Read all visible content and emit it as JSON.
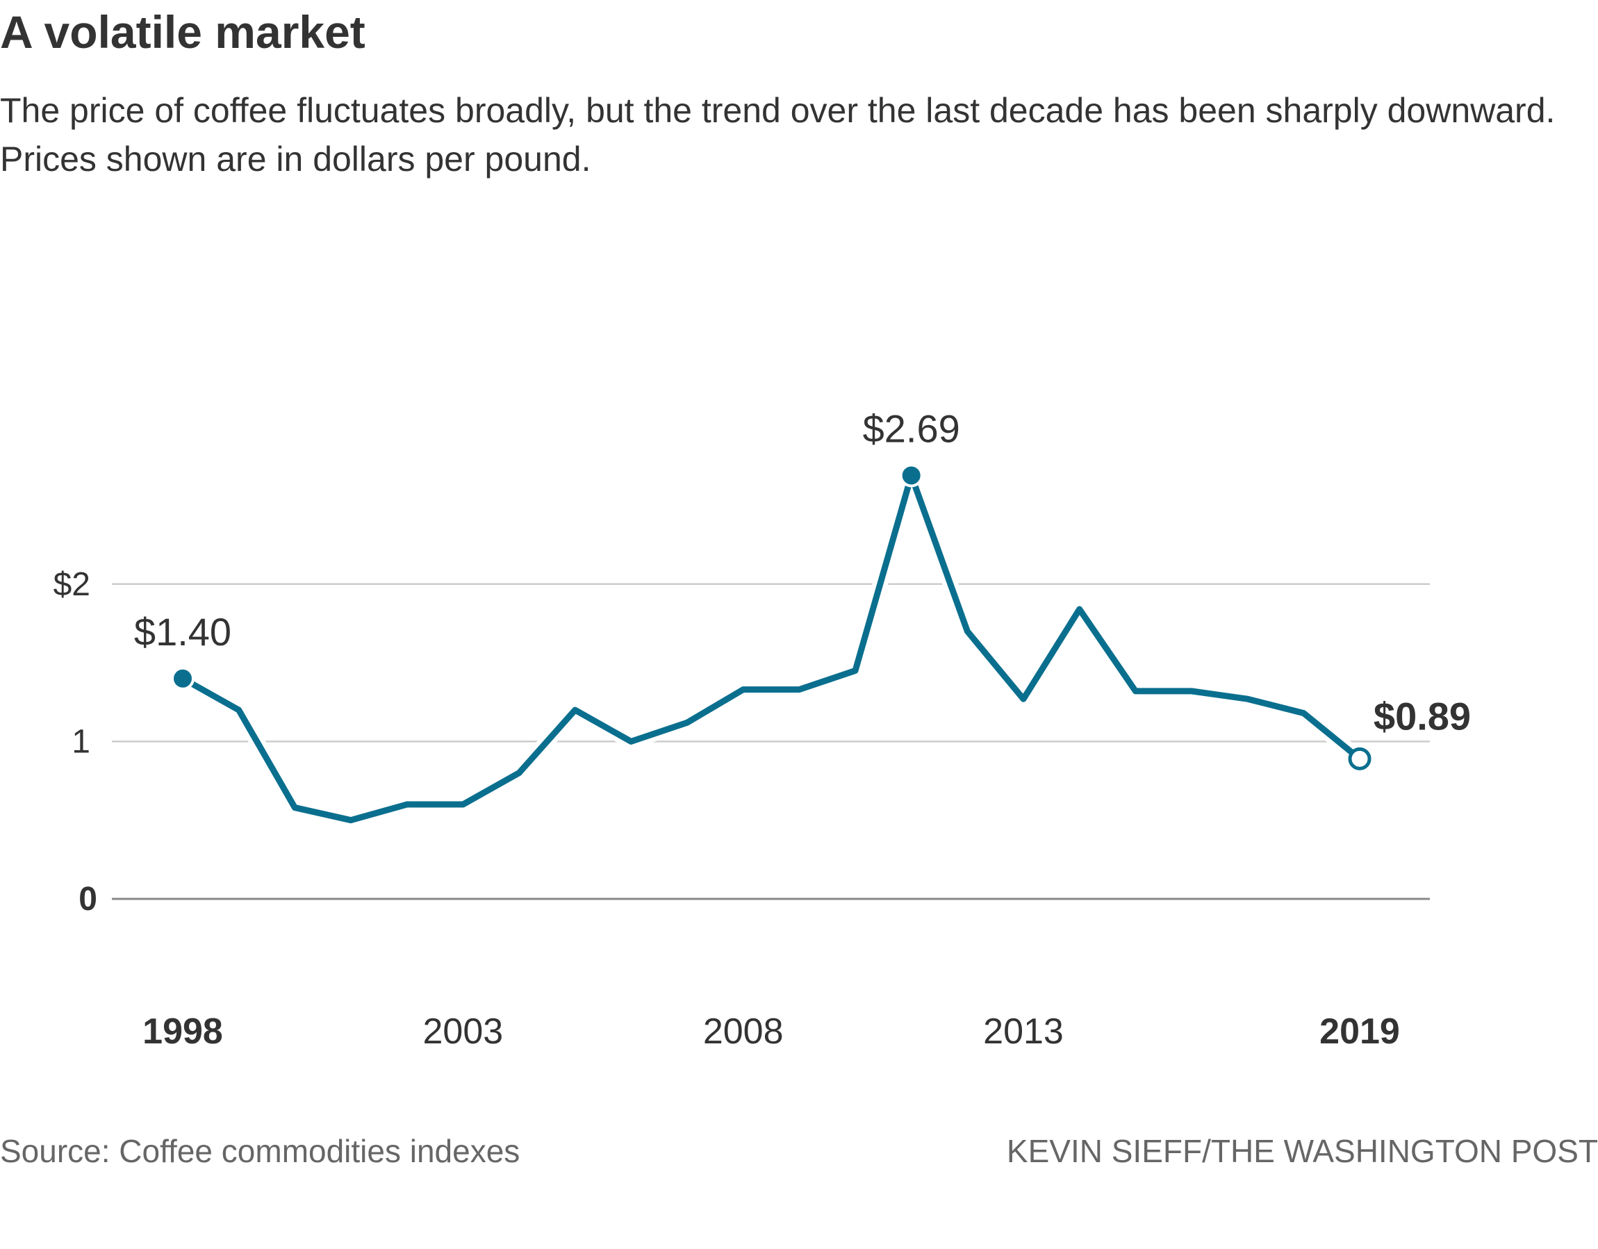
{
  "title": "A volatile market",
  "subtitle": "The price of coffee fluctuates broadly, but the trend over the last decade has been sharply downward. Prices shown are in dollars per pound.",
  "source": "Source: Coffee commodities indexes",
  "credit": "KEVIN SIEFF/THE WASHINGTON POST",
  "chart_data": {
    "type": "line",
    "title": "A volatile market",
    "xlabel": "",
    "ylabel": "",
    "ylim": [
      0,
      2.69
    ],
    "xlim": [
      1998,
      2019
    ],
    "grid": true,
    "line_color": "#0a6f8e",
    "y_ticks": [
      {
        "value": 0,
        "label": "0"
      },
      {
        "value": 1,
        "label": "1"
      },
      {
        "value": 2,
        "label": "$2"
      }
    ],
    "x_ticks": [
      {
        "value": 1998,
        "label": "1998",
        "bold": true
      },
      {
        "value": 2003,
        "label": "2003"
      },
      {
        "value": 2008,
        "label": "2008"
      },
      {
        "value": 2013,
        "label": "2013"
      },
      {
        "value": 2019,
        "label": "2019",
        "bold": true
      }
    ],
    "x": [
      1998,
      1999,
      2000,
      2001,
      2002,
      2003,
      2004,
      2005,
      2006,
      2007,
      2008,
      2009,
      2010,
      2011,
      2012,
      2013,
      2014,
      2015,
      2016,
      2017,
      2018,
      2019
    ],
    "values": [
      1.4,
      1.2,
      0.58,
      0.5,
      0.6,
      0.6,
      0.8,
      1.2,
      1.0,
      1.12,
      1.33,
      1.33,
      1.45,
      2.69,
      1.7,
      1.27,
      1.84,
      1.32,
      1.32,
      1.27,
      1.18,
      0.89
    ],
    "annotations": [
      {
        "x": 1998,
        "y": 1.4,
        "label": "$1.40"
      },
      {
        "x": 2011,
        "y": 2.69,
        "label": "$2.69"
      },
      {
        "x": 2019,
        "y": 0.89,
        "label": "$0.89",
        "bold": true
      }
    ]
  }
}
